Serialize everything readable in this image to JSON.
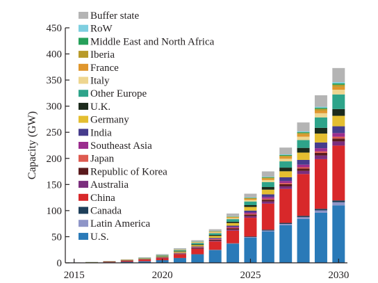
{
  "chart_data": {
    "type": "bar",
    "stacked": true,
    "title": "",
    "xlabel": "",
    "ylabel": "Capacity (GW)",
    "ylim": [
      0,
      450
    ],
    "yticks": [
      0,
      50,
      100,
      150,
      200,
      250,
      300,
      350,
      400,
      450
    ],
    "xlim": [
      2014.5,
      2030.5
    ],
    "xticks": [
      2015,
      2020,
      2025,
      2030
    ],
    "grid": false,
    "legend_position": "top-left",
    "x": [
      2015,
      2016,
      2017,
      2018,
      2019,
      2020,
      2021,
      2022,
      2023,
      2024,
      2025,
      2026,
      2027,
      2028,
      2029,
      2030
    ],
    "series": [
      {
        "name": "U.S.",
        "color": "#2a7ab8",
        "values": [
          0.3,
          0.5,
          1,
          2,
          3,
          5,
          9,
          16,
          24,
          36,
          48,
          60,
          72,
          84,
          96,
          110
        ]
      },
      {
        "name": "Latin America",
        "color": "#8e95c8",
        "values": [
          0,
          0,
          0,
          0,
          0,
          0.1,
          0.2,
          0.3,
          0.5,
          0.8,
          1.2,
          1.8,
          2.5,
          3.5,
          4.5,
          6
        ]
      },
      {
        "name": "Canada",
        "color": "#1e3f5a",
        "values": [
          0,
          0,
          0,
          0,
          0,
          0.1,
          0.2,
          0.3,
          0.5,
          0.8,
          1.2,
          1.6,
          2,
          2.5,
          3,
          3.5
        ]
      },
      {
        "name": "China",
        "color": "#d8282a",
        "values": [
          0.2,
          0.5,
          1,
          2,
          3,
          4,
          7,
          10,
          16,
          24,
          36,
          50,
          65,
          80,
          95,
          105
        ]
      },
      {
        "name": "Australia",
        "color": "#7b2e7d",
        "values": [
          0,
          0,
          0,
          0,
          0,
          0.2,
          0.4,
          0.8,
          1.2,
          2,
          3,
          4,
          5,
          6,
          7,
          8
        ]
      },
      {
        "name": "Republic of Korea",
        "color": "#5a1a1c",
        "values": [
          0,
          0.1,
          0.2,
          0.3,
          0.5,
          0.7,
          1,
          1.3,
          1.8,
          2.3,
          3,
          3.5,
          4,
          4.5,
          5,
          5.5
        ]
      },
      {
        "name": "Japan",
        "color": "#de5a50",
        "values": [
          0,
          0,
          0.1,
          0.2,
          0.3,
          0.4,
          0.6,
          0.8,
          1,
          1.3,
          1.6,
          2,
          2.3,
          2.6,
          3,
          3.5
        ]
      },
      {
        "name": "Southeast Asia",
        "color": "#9b2d8e",
        "values": [
          0,
          0,
          0,
          0,
          0.1,
          0.2,
          0.4,
          0.8,
          1.2,
          1.8,
          2.5,
          3.2,
          4,
          5,
          6,
          7
        ]
      },
      {
        "name": "India",
        "color": "#463c8c",
        "values": [
          0,
          0,
          0,
          0,
          0.2,
          0.3,
          0.6,
          1,
          1.5,
          2.2,
          3.5,
          5,
          7,
          9,
          11,
          13
        ]
      },
      {
        "name": "Germany",
        "color": "#e4be30",
        "values": [
          0.1,
          0.2,
          0.3,
          0.5,
          0.8,
          1.2,
          2,
          2.8,
          3.8,
          5,
          7,
          9,
          11.5,
          14,
          17,
          20
        ]
      },
      {
        "name": "U.K.",
        "color": "#1c2a1c",
        "values": [
          0,
          0,
          0.1,
          0.2,
          0.3,
          0.5,
          0.8,
          1.2,
          1.8,
          2.5,
          3.5,
          5,
          7,
          9,
          11,
          13
        ]
      },
      {
        "name": "Other Europe",
        "color": "#2ea48a",
        "values": [
          0.1,
          0.2,
          0.3,
          0.5,
          0.8,
          1.2,
          1.8,
          2.6,
          3.5,
          5,
          7,
          9.5,
          12,
          15,
          20,
          28
        ]
      },
      {
        "name": "Italy",
        "color": "#eed690",
        "values": [
          0,
          0,
          0.1,
          0.2,
          0.3,
          0.5,
          0.8,
          1.2,
          1.6,
          2.2,
          3,
          4,
          5,
          6.5,
          8,
          9
        ]
      },
      {
        "name": "France",
        "color": "#e0962c",
        "values": [
          0,
          0,
          0,
          0.1,
          0.2,
          0.3,
          0.5,
          0.7,
          1,
          1.4,
          2,
          2.7,
          3.5,
          4.2,
          5,
          5.5
        ]
      },
      {
        "name": "Iberia",
        "color": "#b89a2a",
        "values": [
          0,
          0,
          0,
          0,
          0.1,
          0.2,
          0.3,
          0.5,
          0.7,
          1,
          1.4,
          1.8,
          2.3,
          2.8,
          3.3,
          4
        ]
      },
      {
        "name": "Middle East and North Africa",
        "color": "#26a05a",
        "values": [
          0,
          0,
          0,
          0,
          0,
          0.1,
          0.1,
          0.2,
          0.3,
          0.5,
          0.7,
          1,
          1.3,
          1.6,
          2,
          2.5
        ]
      },
      {
        "name": "RoW",
        "color": "#7ecfe0",
        "values": [
          0,
          0,
          0,
          0,
          0.1,
          0.1,
          0.2,
          0.3,
          0.4,
          0.6,
          0.8,
          1,
          1.3,
          1.6,
          2,
          2.5
        ]
      },
      {
        "name": "Buffer state",
        "color": "#b4b4b4",
        "values": [
          0.1,
          0.3,
          0.5,
          0.8,
          1,
          1.5,
          2,
          2.5,
          3.5,
          5,
          7,
          10,
          13,
          17,
          22,
          27
        ]
      }
    ]
  }
}
